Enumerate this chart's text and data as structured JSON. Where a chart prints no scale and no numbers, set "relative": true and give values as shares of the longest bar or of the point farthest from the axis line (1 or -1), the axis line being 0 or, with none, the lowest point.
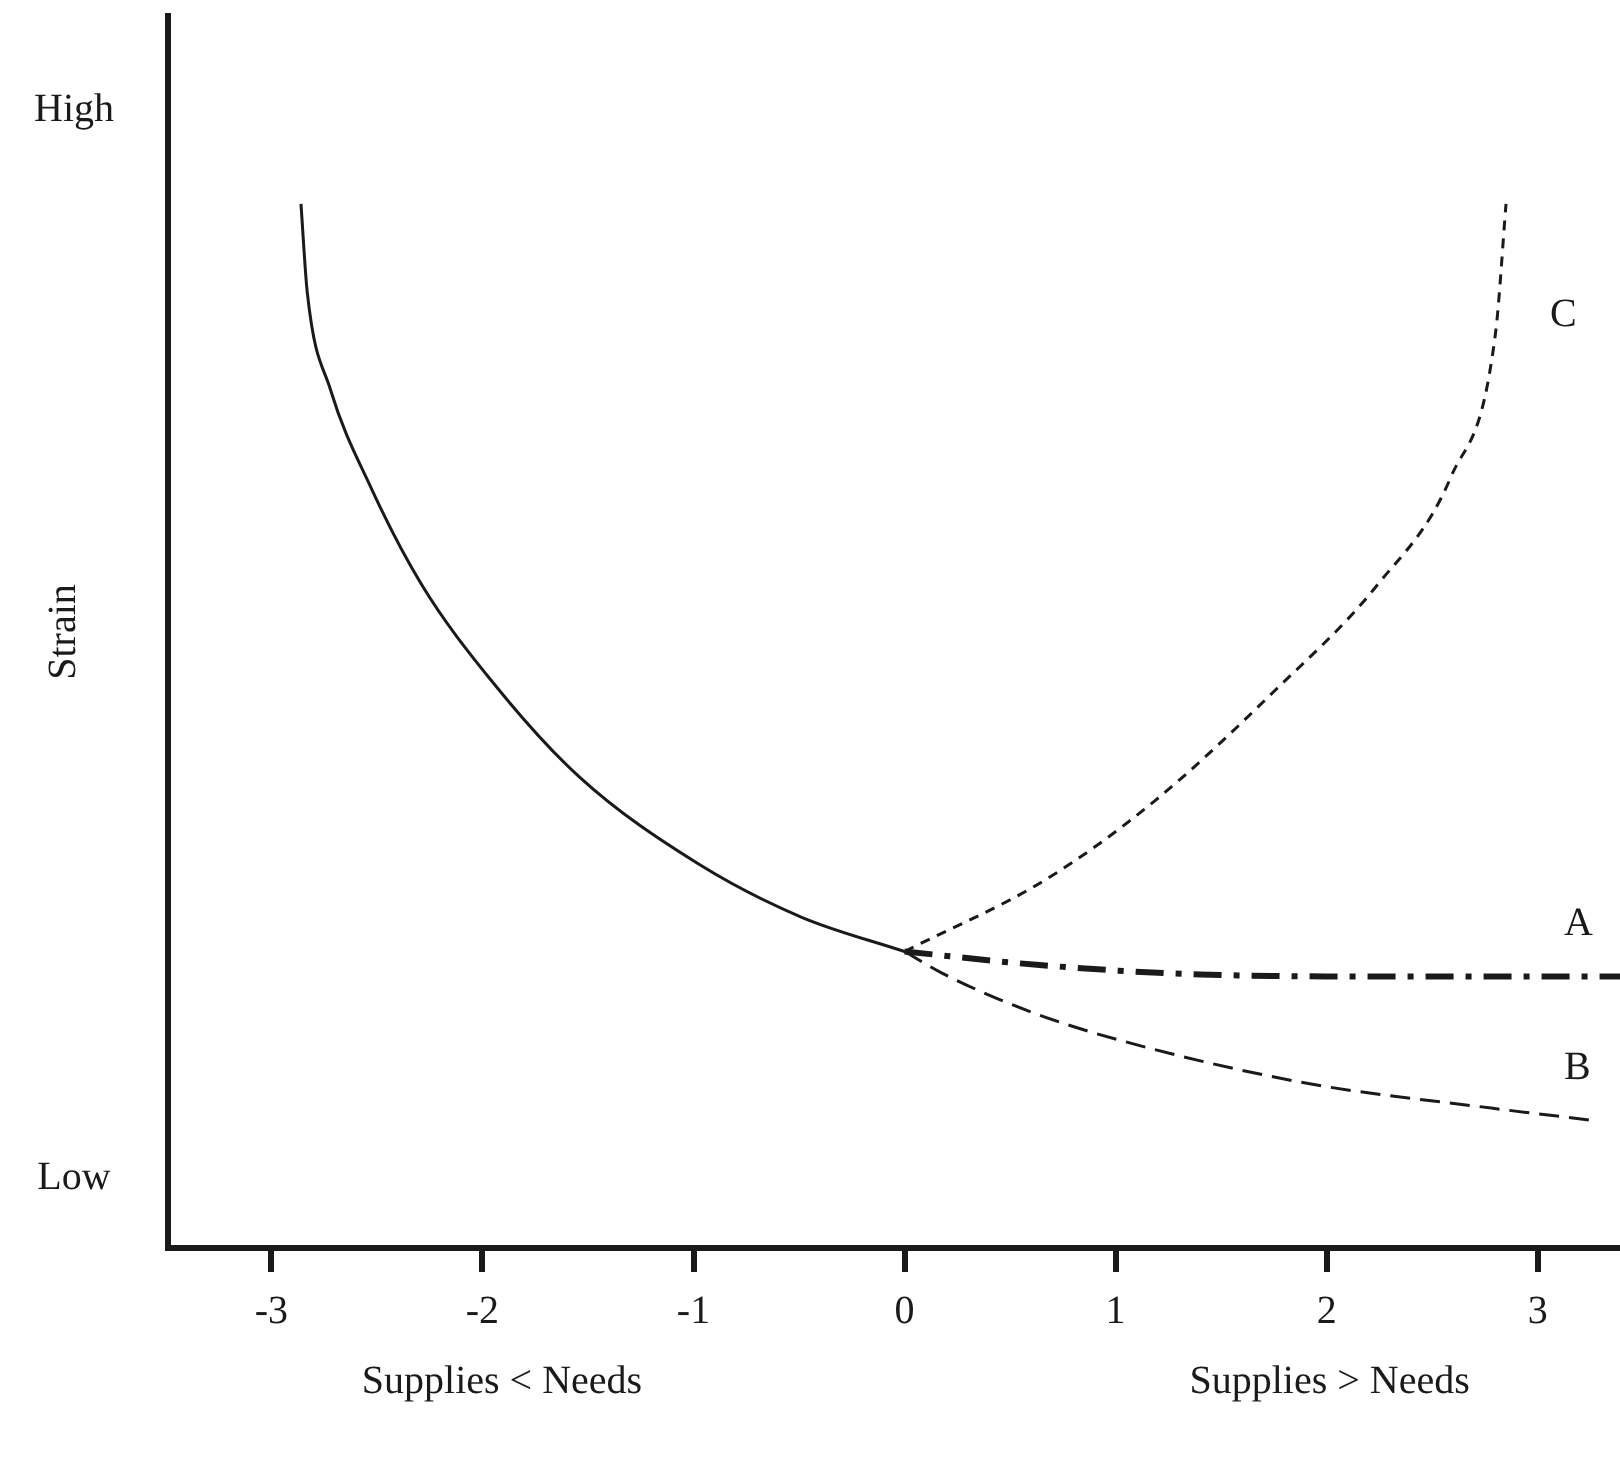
{
  "chart_data": {
    "type": "line",
    "ylabel": "Strain",
    "relative": true,
    "xlim": [
      -3.49,
      3.39
    ],
    "xticks": [
      -3,
      -2,
      -1,
      0,
      1,
      2,
      3
    ],
    "annotations": [
      "High",
      "Low",
      "Supplies < Needs",
      "Supplies > Needs"
    ],
    "legend": false,
    "marker": "none",
    "series": [
      {
        "color": "#1a1a1a",
        "line_style": "solid",
        "x": [
          -2.86,
          -2.83,
          -2.72,
          -2.53,
          -2.29,
          -1.96,
          -1.54,
          -0.97,
          -0.49,
          0
        ],
        "values": [
          1.0,
          0.915,
          0.822,
          0.729,
          0.636,
          0.544,
          0.451,
          0.367,
          0.317,
          0.284
        ]
      },
      {
        "name": "A",
        "color": "#1a1a1a",
        "line_style": "dashdot",
        "x": [
          0,
          0.64,
          1.4,
          2.35,
          3.39
        ],
        "values": [
          0.284,
          0.271,
          0.262,
          0.26,
          0.26
        ]
      },
      {
        "name": "B",
        "color": "#1a1a1a",
        "line_style": "dashed",
        "x": [
          0,
          0.18,
          0.6,
          1.02,
          1.9,
          2.78,
          3.27
        ],
        "values": [
          0.284,
          0.263,
          0.226,
          0.199,
          0.158,
          0.134,
          0.122
        ]
      },
      {
        "name": "C",
        "color": "#1a1a1a",
        "line_style": "dotted",
        "x": [
          0,
          0.67,
          1.19,
          1.75,
          2.24,
          2.59,
          2.8,
          2.85
        ],
        "values": [
          0.284,
          0.353,
          0.429,
          0.533,
          0.635,
          0.739,
          0.876,
          1.0
        ]
      }
    ]
  }
}
